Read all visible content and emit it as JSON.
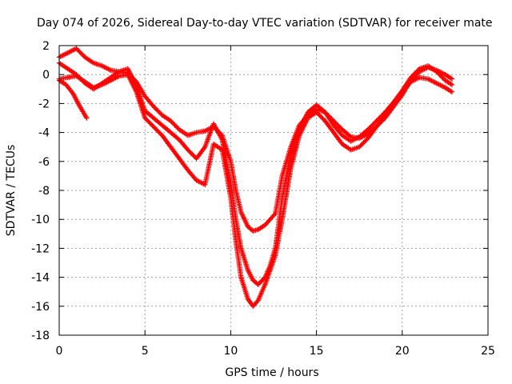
{
  "chart_data": {
    "type": "scatter",
    "title": "Day 074 of 2026, Sidereal Day-to-day VTEC variation (SDTVAR) for receiver mate",
    "xlabel": "GPS time / hours",
    "ylabel": "SDTVAR / TECUs",
    "xlim": [
      0,
      25
    ],
    "ylim": [
      -18,
      2
    ],
    "xticks": [
      0,
      5,
      10,
      15,
      20,
      25
    ],
    "xtick_labels": [
      "0",
      "5",
      "10",
      "15",
      "20",
      "25"
    ],
    "yticks": [
      2,
      0,
      -2,
      -4,
      -6,
      -8,
      -10,
      -12,
      -14,
      -16,
      -18
    ],
    "ytick_labels": [
      "2",
      "0",
      "-2",
      "-4",
      "-6",
      "-8",
      "-10",
      "-12",
      "-14",
      "-16",
      "-18"
    ],
    "grid": true,
    "marker": "plus",
    "color": "#ff0000",
    "series": [
      {
        "x": [
          0.0,
          0.5,
          1.0,
          1.5,
          2.0,
          2.5,
          3.0,
          3.5,
          4.0,
          4.5,
          5.0,
          5.5,
          6.0,
          6.5,
          7.0,
          7.5,
          8.0,
          8.5,
          9.0,
          9.5,
          10.0,
          10.3,
          10.6,
          11.0,
          11.3,
          11.6,
          12.0,
          12.3,
          12.6,
          13.0,
          13.5,
          14.0,
          14.5,
          15.0,
          15.5,
          16.0,
          16.5,
          17.0,
          17.5,
          18.0,
          18.5,
          19.0,
          19.5,
          20.0,
          20.5,
          21.0,
          21.5,
          22.0,
          22.5,
          22.9
        ],
        "y": [
          1.2,
          1.5,
          1.8,
          1.2,
          0.8,
          0.6,
          0.3,
          0.2,
          0.1,
          -0.5,
          -1.5,
          -2.2,
          -2.8,
          -3.2,
          -3.8,
          -4.2,
          -4.0,
          -3.9,
          -3.6,
          -4.2,
          -6.0,
          -8.0,
          -9.5,
          -10.5,
          -10.8,
          -10.7,
          -10.4,
          -10.0,
          -9.6,
          -7.0,
          -5.0,
          -3.5,
          -2.8,
          -2.4,
          -2.6,
          -3.2,
          -3.8,
          -4.3,
          -4.4,
          -4.1,
          -3.6,
          -3.0,
          -2.2,
          -1.4,
          -0.4,
          0.2,
          0.5,
          0.3,
          0.0,
          -0.3
        ]
      },
      {
        "x": [
          0.0,
          0.5,
          1.0,
          1.5,
          2.0,
          2.5,
          3.0,
          3.5,
          4.0,
          4.5,
          5.0,
          5.5,
          6.0,
          6.5,
          7.0,
          7.5,
          8.0,
          8.5,
          9.0,
          9.5,
          10.0,
          10.3,
          10.6,
          11.0,
          11.3,
          11.6,
          12.0,
          12.3,
          12.6,
          13.0,
          13.5,
          14.0,
          14.5,
          15.0,
          15.5,
          16.0,
          16.5,
          17.0,
          17.5,
          18.0,
          18.5,
          19.0,
          19.5,
          20.0,
          20.5,
          21.0,
          21.5,
          22.0,
          22.5,
          22.9
        ],
        "y": [
          0.8,
          0.4,
          0.0,
          -0.6,
          -1.0,
          -0.6,
          -0.2,
          0.2,
          0.4,
          -0.8,
          -2.5,
          -3.0,
          -3.5,
          -4.0,
          -4.5,
          -5.2,
          -5.8,
          -5.0,
          -3.4,
          -4.5,
          -7.5,
          -10.0,
          -12.0,
          -13.5,
          -14.2,
          -14.5,
          -14.0,
          -13.2,
          -12.0,
          -8.5,
          -5.5,
          -3.8,
          -2.6,
          -2.1,
          -2.6,
          -3.5,
          -4.2,
          -4.6,
          -4.3,
          -3.8,
          -3.2,
          -2.6,
          -1.9,
          -1.1,
          -0.2,
          0.4,
          0.6,
          0.2,
          -0.4,
          -0.7
        ]
      },
      {
        "x": [
          0.0,
          0.5,
          1.0,
          1.5,
          2.0,
          2.5,
          3.0,
          3.5,
          4.0,
          4.5,
          5.0,
          5.5,
          6.0,
          6.5,
          7.0,
          7.5,
          8.0,
          8.5,
          9.0,
          9.5,
          10.0,
          10.3,
          10.6,
          11.0,
          11.3,
          11.6,
          12.0,
          12.3,
          12.6,
          13.0,
          13.5,
          14.0,
          14.5,
          15.0,
          15.5,
          16.0,
          16.5,
          17.0,
          17.5,
          18.0,
          18.5,
          19.0,
          19.5,
          20.0,
          20.5,
          21.0,
          21.5,
          22.0,
          22.5,
          22.9
        ],
        "y": [
          -0.3,
          -0.2,
          -0.1,
          -0.5,
          -0.9,
          -0.7,
          -0.4,
          -0.1,
          0.0,
          -1.2,
          -3.0,
          -3.6,
          -4.2,
          -5.0,
          -5.8,
          -6.6,
          -7.3,
          -7.6,
          -4.8,
          -5.2,
          -8.5,
          -11.5,
          -14.0,
          -15.5,
          -16.0,
          -15.6,
          -14.5,
          -13.5,
          -12.5,
          -10.0,
          -6.5,
          -4.2,
          -3.0,
          -2.6,
          -3.2,
          -4.0,
          -4.8,
          -5.2,
          -5.0,
          -4.4,
          -3.6,
          -2.8,
          -2.0,
          -1.2,
          -0.5,
          -0.2,
          -0.3,
          -0.6,
          -0.9,
          -1.2
        ]
      },
      {
        "x": [
          0.0,
          0.4,
          0.8,
          1.2,
          1.6
        ],
        "y": [
          -0.4,
          -0.7,
          -1.3,
          -2.2,
          -3.0
        ]
      }
    ]
  }
}
